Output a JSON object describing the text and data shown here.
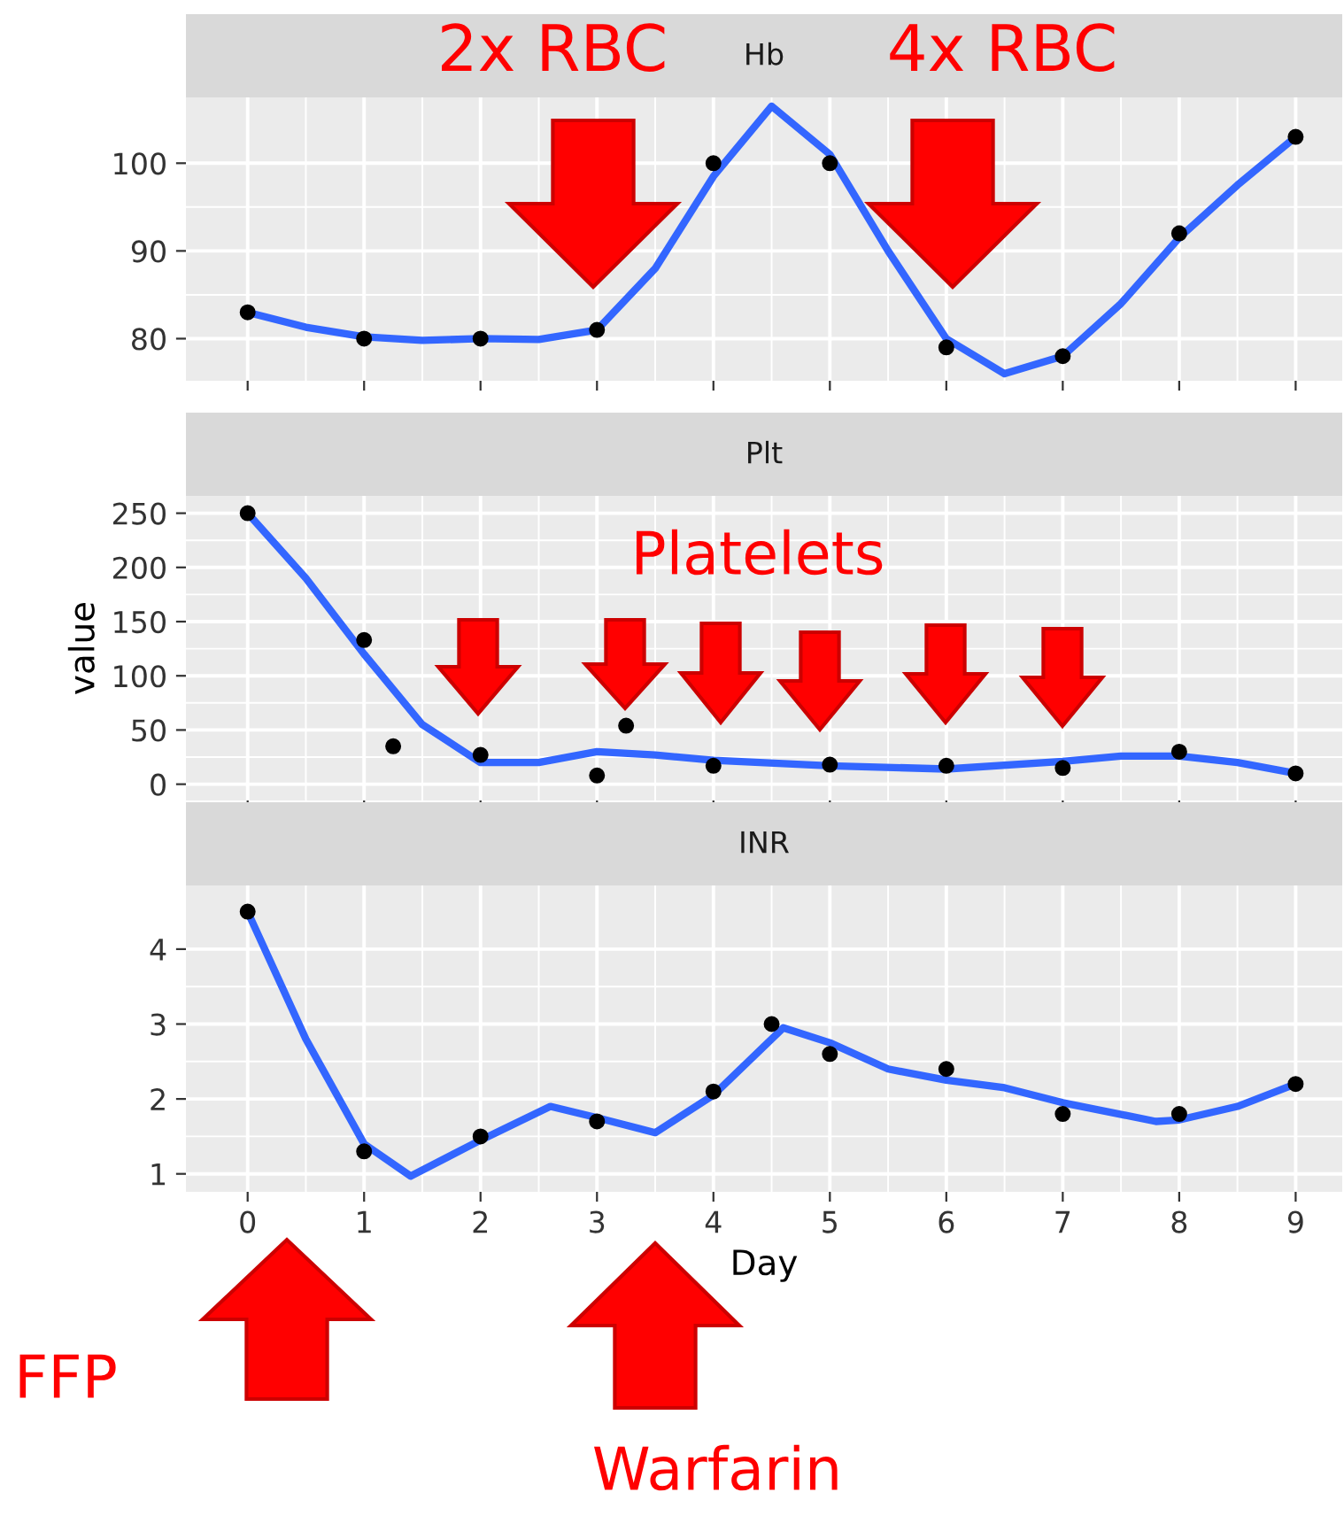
{
  "chart_data": [
    {
      "type": "scatter",
      "title": "Hb",
      "annotations": [
        "2x RBC",
        "4x RBC"
      ],
      "xlim": [
        -0.53,
        9.4
      ],
      "xticks": [
        0,
        1,
        2,
        3,
        4,
        5,
        6,
        7,
        8,
        9
      ],
      "ylim": [
        75.2,
        107.5
      ],
      "yticks": [
        80,
        90,
        100
      ],
      "grid": true,
      "legend": false,
      "tick_labels": "y",
      "series": [
        {
          "type": "scatter",
          "color": "#000000",
          "x": [
            0,
            1,
            2,
            3,
            4,
            5,
            6,
            7,
            8,
            9
          ],
          "values": [
            83,
            80,
            80,
            81,
            100,
            100,
            79,
            78,
            92,
            103
          ]
        },
        {
          "type": "line",
          "color": "#3366ff",
          "x": [
            0,
            0.5,
            1,
            1.5,
            2,
            2.5,
            3,
            3.5,
            4,
            4.5,
            5,
            5.5,
            6,
            6.5,
            7,
            7.5,
            8,
            8.5,
            9
          ],
          "values": [
            83,
            81.3,
            80.2,
            79.8,
            80,
            79.9,
            81,
            88,
            98.5,
            106.5,
            101,
            90,
            80,
            76,
            78,
            84,
            91.5,
            97.5,
            103
          ]
        }
      ]
    },
    {
      "type": "scatter",
      "title": "Plt",
      "ylabel": "value",
      "annotations": [
        "Platelets"
      ],
      "xlim": [
        -0.53,
        9.4
      ],
      "xticks": [
        0,
        1,
        2,
        3,
        4,
        5,
        6,
        7,
        8,
        9
      ],
      "ylim": [
        -15,
        266
      ],
      "yticks": [
        0,
        50,
        100,
        150,
        200,
        250
      ],
      "grid": true,
      "legend": false,
      "tick_labels": "y",
      "series": [
        {
          "type": "scatter",
          "color": "#000000",
          "x": [
            0,
            1,
            1.25,
            2,
            3,
            3.25,
            4,
            5,
            6,
            7,
            8,
            9
          ],
          "values": [
            250,
            133,
            35,
            27,
            8,
            54,
            17,
            18,
            17,
            15,
            30,
            10
          ]
        },
        {
          "type": "line",
          "color": "#3366ff",
          "x": [
            0,
            0.5,
            1,
            1.5,
            2,
            2.5,
            3,
            3.5,
            4,
            5,
            6,
            7,
            7.5,
            8,
            8.5,
            9
          ],
          "values": [
            250,
            190,
            120,
            55,
            20,
            20,
            30,
            27,
            22,
            17,
            14,
            21,
            26,
            26,
            20,
            10
          ]
        }
      ]
    },
    {
      "type": "scatter",
      "title": "INR",
      "xlabel": "Day",
      "annotations": [
        "FFP",
        "Warfarin"
      ],
      "xlim": [
        -0.53,
        9.4
      ],
      "xticks": [
        0,
        1,
        2,
        3,
        4,
        5,
        6,
        7,
        8,
        9
      ],
      "ylim": [
        0.76,
        4.85
      ],
      "yticks": [
        1,
        2,
        3,
        4
      ],
      "grid": true,
      "legend": false,
      "series": [
        {
          "type": "scatter",
          "color": "#000000",
          "x": [
            0,
            1,
            2,
            3,
            4,
            4.5,
            5,
            6,
            7,
            8,
            9
          ],
          "values": [
            4.5,
            1.3,
            1.5,
            1.7,
            2.1,
            3.0,
            2.6,
            2.4,
            1.8,
            1.8,
            2.2
          ]
        },
        {
          "type": "line",
          "color": "#3366ff",
          "x": [
            0,
            0.5,
            1,
            1.4,
            2,
            2.6,
            3,
            3.5,
            4,
            4.6,
            5,
            5.5,
            6,
            6.5,
            7,
            7.8,
            8,
            8.5,
            9
          ],
          "values": [
            4.5,
            2.8,
            1.4,
            0.97,
            1.45,
            1.9,
            1.75,
            1.55,
            2.05,
            2.95,
            2.75,
            2.4,
            2.25,
            2.15,
            1.95,
            1.7,
            1.72,
            1.9,
            2.2
          ]
        }
      ]
    }
  ]
}
